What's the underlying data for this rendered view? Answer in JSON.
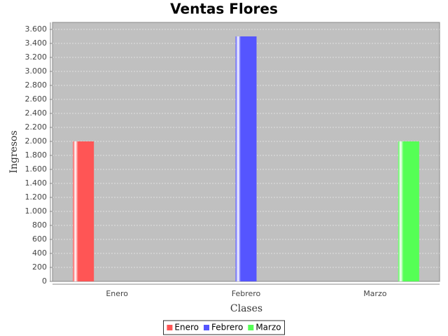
{
  "chart_data": {
    "type": "bar",
    "title": "Ventas Flores",
    "x_label": "Clases",
    "y_label": "Ingresos",
    "categories": [
      "Enero",
      "Febrero",
      "Marzo"
    ],
    "series": [
      {
        "name": "Enero",
        "color": "#ff5555",
        "values": [
          2000,
          null,
          null
        ]
      },
      {
        "name": "Febrero",
        "color": "#5555ff",
        "values": [
          null,
          3500,
          null
        ]
      },
      {
        "name": "Marzo",
        "color": "#55ff55",
        "values": [
          null,
          null,
          2000
        ]
      }
    ],
    "ylim": [
      0,
      3700
    ],
    "yticks": [
      0,
      200,
      400,
      600,
      800,
      {
        "value": 1000,
        "label": "1.000"
      },
      {
        "value": 1200,
        "label": "1.200"
      },
      {
        "value": 1400,
        "label": "1.400"
      },
      {
        "value": 1600,
        "label": "1.600"
      },
      {
        "value": 1800,
        "label": "1.800"
      },
      {
        "value": 2000,
        "label": "2.000"
      },
      {
        "value": 2200,
        "label": "2.200"
      },
      {
        "value": 2400,
        "label": "2.400"
      },
      {
        "value": 2600,
        "label": "2.600"
      },
      {
        "value": 2800,
        "label": "2.800"
      },
      {
        "value": 3000,
        "label": "3.000"
      },
      {
        "value": 3200,
        "label": "3.200"
      },
      {
        "value": 3400,
        "label": "3.400"
      },
      {
        "value": 3600,
        "label": "3.600"
      }
    ],
    "grid": true,
    "legend": "bottom"
  }
}
